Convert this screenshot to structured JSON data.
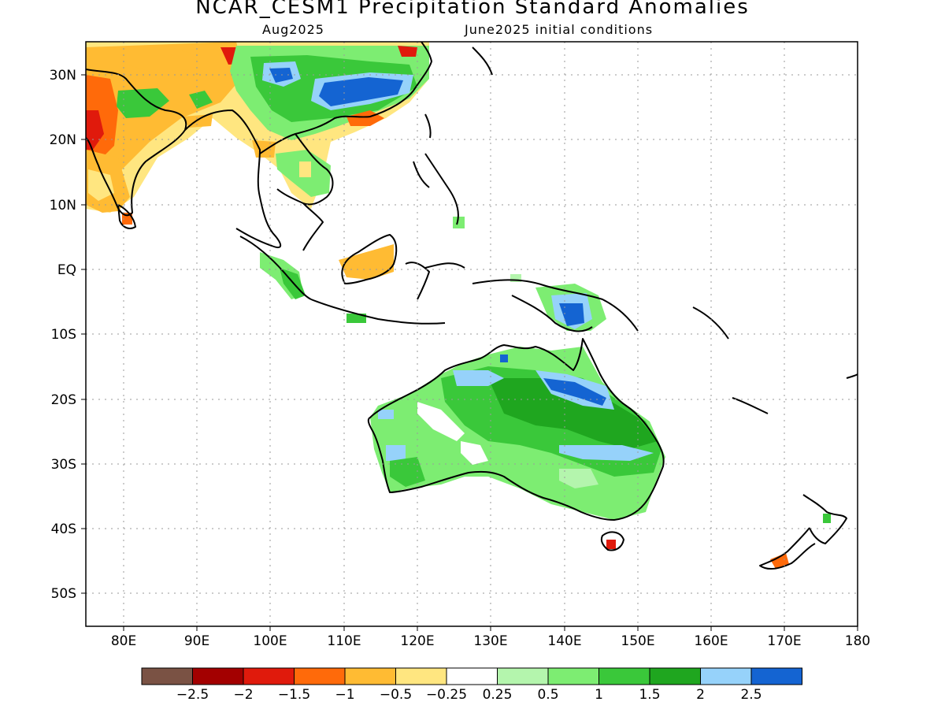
{
  "header": {
    "title": "NCAR_CESM1 Precipitation Standard Anomalies",
    "valid_month": "Aug2025",
    "init_label": "June2025 initial conditions"
  },
  "map": {
    "lon_ticks": [
      "80E",
      "90E",
      "100E",
      "110E",
      "120E",
      "130E",
      "140E",
      "150E",
      "160E",
      "170E",
      "180"
    ],
    "lat_ticks": [
      "30N",
      "20N",
      "10N",
      "EQ",
      "10S",
      "20S",
      "30S",
      "40S",
      "50S"
    ],
    "extent": {
      "lon": [
        75,
        180
      ],
      "lat": [
        -55,
        35
      ]
    }
  },
  "legend": {
    "colors": [
      "#7a5244",
      "#a30000",
      "#e01a0c",
      "#ff6a0a",
      "#ffbb33",
      "#ffe680",
      "#ffffff",
      "#b4f5ad",
      "#7ded72",
      "#3ac83a",
      "#1fa61f",
      "#96d2fa",
      "#1464d2"
    ],
    "labels": [
      "−2.5",
      "−2",
      "−1.5",
      "−1",
      "−0.5",
      "−0.25",
      "0.25",
      "0.5",
      "1",
      "1.5",
      "2",
      "2.5"
    ]
  }
}
